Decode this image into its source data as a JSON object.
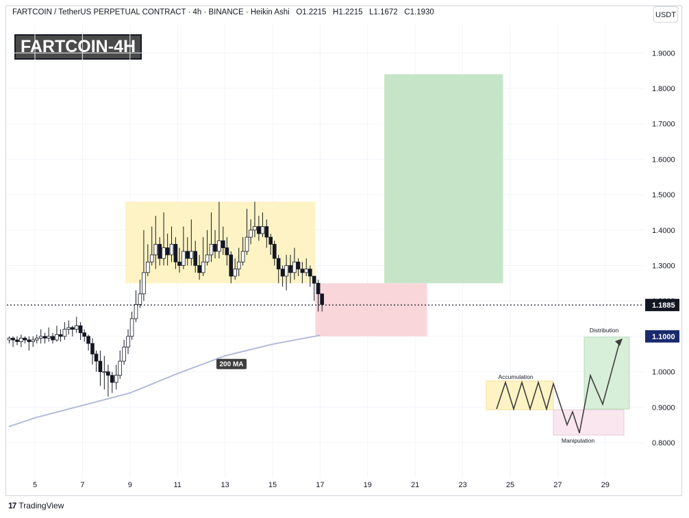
{
  "header": {
    "symbol_line": "FARTCOIN / TetherUS PERPETUAL CONTRACT · 4h · BINANCE · Heikin Ashi",
    "o": "O1.2215",
    "h": "H1.2215",
    "l": "L1.1672",
    "c": "C1.1930",
    "currency": "USDT"
  },
  "title_badge": "FARTCOIN-4H",
  "footer": {
    "brand": "TradingView"
  },
  "colors": {
    "up": "#ffffff",
    "down": "#131722",
    "ma": "#b2b9d9",
    "consolidation_box": "#fdf3c4",
    "target_box": "#c6e5c8",
    "stop_box": "#f9d6da",
    "price_label": "#131722",
    "level_label": "#1a2a6c"
  },
  "chart_data": {
    "type": "candlestick",
    "style": "Heikin Ashi",
    "x_axis_ticks": [
      "5",
      "7",
      "9",
      "11",
      "13",
      "15",
      "17",
      "19",
      "21",
      "23",
      "25",
      "27",
      "29"
    ],
    "y_axis_ticks": [
      "0.8000",
      "0.9000",
      "1.0000",
      "1.1000",
      "1.2000",
      "1.3000",
      "1.4000",
      "1.5000",
      "1.6000",
      "1.7000",
      "1.8000",
      "1.9000"
    ],
    "ylim": [
      0.76,
      1.98
    ],
    "current_price_label": "1.1885",
    "current_price": 1.1885,
    "level_label": "1.1000",
    "level": 1.1,
    "ma_label": "200 MA",
    "ma_points": [
      [
        3.9,
        0.845
      ],
      [
        5.0,
        0.87
      ],
      [
        7.0,
        0.905
      ],
      [
        9.0,
        0.94
      ],
      [
        11.0,
        0.995
      ],
      [
        13.0,
        1.045
      ],
      [
        15.0,
        1.078
      ],
      [
        17.0,
        1.103
      ]
    ],
    "boxes": {
      "consolidation": {
        "x0": 8.8,
        "x1": 16.8,
        "y0": 1.25,
        "y1": 1.48
      },
      "target": {
        "x0": 19.7,
        "x1": 24.7,
        "y0": 1.25,
        "y1": 1.84
      },
      "stop": {
        "x0": 16.8,
        "x1": 21.5,
        "y0": 1.1,
        "y1": 1.25
      }
    },
    "candles": [
      [
        3.92,
        1.09,
        1.095,
        1.1,
        1.08
      ],
      [
        4.08,
        1.095,
        1.09,
        1.1,
        1.07
      ],
      [
        4.25,
        1.09,
        1.085,
        1.1,
        1.075
      ],
      [
        4.42,
        1.085,
        1.095,
        1.105,
        1.07
      ],
      [
        4.58,
        1.095,
        1.09,
        1.1,
        1.08
      ],
      [
        4.75,
        1.09,
        1.085,
        1.1,
        1.06
      ],
      [
        4.92,
        1.085,
        1.09,
        1.1,
        1.07
      ],
      [
        5.08,
        1.09,
        1.095,
        1.105,
        1.08
      ],
      [
        5.25,
        1.095,
        1.1,
        1.12,
        1.08
      ],
      [
        5.42,
        1.1,
        1.095,
        1.11,
        1.08
      ],
      [
        5.58,
        1.095,
        1.1,
        1.125,
        1.085
      ],
      [
        5.75,
        1.1,
        1.09,
        1.11,
        1.08
      ],
      [
        5.92,
        1.09,
        1.105,
        1.13,
        1.085
      ],
      [
        6.08,
        1.105,
        1.1,
        1.12,
        1.085
      ],
      [
        6.25,
        1.1,
        1.12,
        1.14,
        1.09
      ],
      [
        6.42,
        1.12,
        1.125,
        1.145,
        1.105
      ],
      [
        6.58,
        1.125,
        1.12,
        1.13,
        1.1
      ],
      [
        6.75,
        1.12,
        1.13,
        1.155,
        1.11
      ],
      [
        6.92,
        1.13,
        1.11,
        1.14,
        1.09
      ],
      [
        7.08,
        1.11,
        1.1,
        1.12,
        1.085
      ],
      [
        7.25,
        1.1,
        1.08,
        1.105,
        1.06
      ],
      [
        7.42,
        1.08,
        1.05,
        1.095,
        1.02
      ],
      [
        7.58,
        1.05,
        1.03,
        1.06,
        1.0
      ],
      [
        7.75,
        1.03,
        1.0,
        1.06,
        0.96
      ],
      [
        7.92,
        1.0,
        1.0,
        1.045,
        0.95
      ],
      [
        8.08,
        1.0,
        0.99,
        1.02,
        0.93
      ],
      [
        8.25,
        0.99,
        0.97,
        1.0,
        0.94
      ],
      [
        8.42,
        0.97,
        0.99,
        1.02,
        0.95
      ],
      [
        8.58,
        0.99,
        1.03,
        1.06,
        0.98
      ],
      [
        8.75,
        1.03,
        1.07,
        1.09,
        1.02
      ],
      [
        8.92,
        1.07,
        1.1,
        1.12,
        1.05
      ],
      [
        9.08,
        1.1,
        1.15,
        1.17,
        1.09
      ],
      [
        9.25,
        1.15,
        1.19,
        1.23,
        1.14
      ],
      [
        9.42,
        1.19,
        1.22,
        1.26,
        1.18
      ],
      [
        9.58,
        1.22,
        1.28,
        1.4,
        1.2
      ],
      [
        9.75,
        1.28,
        1.31,
        1.36,
        1.27
      ],
      [
        9.92,
        1.31,
        1.33,
        1.41,
        1.3
      ],
      [
        10.08,
        1.33,
        1.36,
        1.44,
        1.29
      ],
      [
        10.25,
        1.36,
        1.32,
        1.38,
        1.3
      ],
      [
        10.42,
        1.32,
        1.35,
        1.45,
        1.3
      ],
      [
        10.58,
        1.35,
        1.33,
        1.39,
        1.3
      ],
      [
        10.75,
        1.33,
        1.36,
        1.41,
        1.31
      ],
      [
        10.92,
        1.36,
        1.31,
        1.38,
        1.29
      ],
      [
        11.08,
        1.31,
        1.3,
        1.35,
        1.28
      ],
      [
        11.25,
        1.3,
        1.34,
        1.41,
        1.29
      ],
      [
        11.42,
        1.34,
        1.32,
        1.38,
        1.3
      ],
      [
        11.58,
        1.32,
        1.34,
        1.43,
        1.3
      ],
      [
        11.75,
        1.34,
        1.3,
        1.37,
        1.28
      ],
      [
        11.92,
        1.3,
        1.28,
        1.33,
        1.26
      ],
      [
        12.08,
        1.28,
        1.31,
        1.38,
        1.27
      ],
      [
        12.25,
        1.31,
        1.33,
        1.4,
        1.3
      ],
      [
        12.42,
        1.33,
        1.36,
        1.45,
        1.31
      ],
      [
        12.58,
        1.36,
        1.34,
        1.4,
        1.32
      ],
      [
        12.75,
        1.34,
        1.37,
        1.48,
        1.32
      ],
      [
        12.92,
        1.37,
        1.35,
        1.41,
        1.33
      ],
      [
        13.08,
        1.35,
        1.33,
        1.38,
        1.3
      ],
      [
        13.25,
        1.33,
        1.27,
        1.34,
        1.25
      ],
      [
        13.42,
        1.27,
        1.29,
        1.32,
        1.26
      ],
      [
        13.58,
        1.29,
        1.31,
        1.35,
        1.27
      ],
      [
        13.75,
        1.31,
        1.34,
        1.38,
        1.3
      ],
      [
        13.92,
        1.34,
        1.38,
        1.46,
        1.33
      ],
      [
        14.08,
        1.38,
        1.4,
        1.43,
        1.36
      ],
      [
        14.25,
        1.4,
        1.41,
        1.48,
        1.38
      ],
      [
        14.42,
        1.41,
        1.39,
        1.44,
        1.37
      ],
      [
        14.58,
        1.39,
        1.41,
        1.45,
        1.38
      ],
      [
        14.75,
        1.41,
        1.38,
        1.43,
        1.35
      ],
      [
        14.92,
        1.38,
        1.36,
        1.39,
        1.33
      ],
      [
        15.08,
        1.36,
        1.32,
        1.37,
        1.3
      ],
      [
        15.25,
        1.32,
        1.29,
        1.33,
        1.25
      ],
      [
        15.42,
        1.29,
        1.27,
        1.3,
        1.24
      ],
      [
        15.58,
        1.27,
        1.3,
        1.33,
        1.23
      ],
      [
        15.75,
        1.3,
        1.28,
        1.33,
        1.25
      ],
      [
        15.92,
        1.28,
        1.31,
        1.35,
        1.26
      ],
      [
        16.08,
        1.31,
        1.29,
        1.32,
        1.27
      ],
      [
        16.25,
        1.29,
        1.28,
        1.31,
        1.25
      ],
      [
        16.42,
        1.28,
        1.29,
        1.32,
        1.27
      ],
      [
        16.58,
        1.29,
        1.27,
        1.3,
        1.24
      ],
      [
        16.75,
        1.27,
        1.25,
        1.27,
        1.2
      ],
      [
        16.92,
        1.25,
        1.22,
        1.26,
        1.17
      ],
      [
        17.08,
        1.22,
        1.19,
        1.22,
        1.17
      ]
    ],
    "wyckoff_inset": {
      "labels": {
        "accumulation": "Accumulation",
        "manipulation": "Manipulation",
        "distribution": "Distribution"
      }
    }
  }
}
